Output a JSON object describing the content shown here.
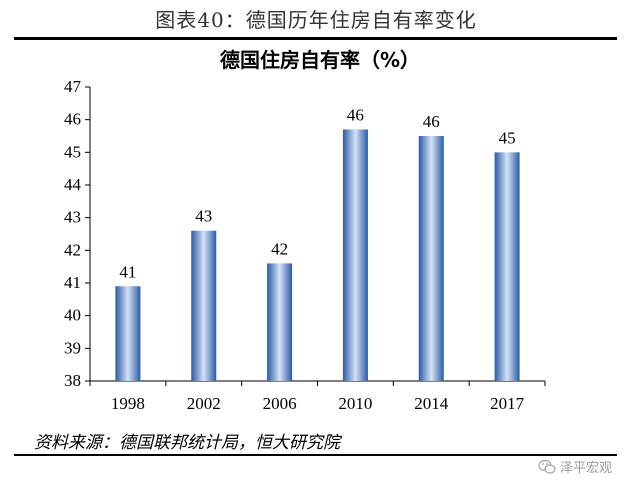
{
  "figure": {
    "caption": "图表40：德国历年住房自有率变化",
    "source": "资料来源：德国联邦统计局，恒大研究院",
    "watermark": "泽平宏观"
  },
  "colors": {
    "bar_dark": "#2b5aa8",
    "bar_light": "#d4e2f4",
    "axis": "#000000"
  },
  "chart_data": {
    "type": "bar",
    "title": "德国住房自有率（%）",
    "categories": [
      "1998",
      "2002",
      "2006",
      "2010",
      "2014",
      "2017"
    ],
    "values": [
      40.9,
      42.6,
      41.6,
      45.7,
      45.5,
      45.0
    ],
    "data_labels": [
      "41",
      "43",
      "42",
      "46",
      "46",
      "45"
    ],
    "yticks": [
      "38",
      "39",
      "40",
      "41",
      "42",
      "43",
      "44",
      "45",
      "46",
      "47"
    ],
    "ylim": [
      38,
      47
    ],
    "grid": false,
    "legend": "none"
  }
}
